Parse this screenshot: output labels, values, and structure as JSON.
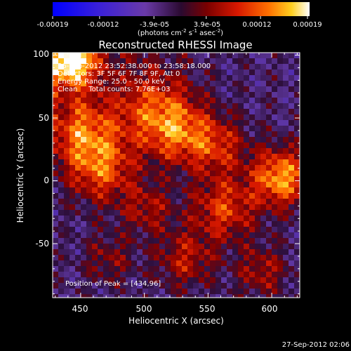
{
  "colorbar": {
    "tick_labels": [
      "-0.00019",
      "-0.00012",
      "-3.9e-05",
      "3.9e-05",
      "0.00012",
      "0.00019"
    ],
    "tick_values": [
      -0.00019,
      -0.00012,
      -3.9e-05,
      3.9e-05,
      0.00012,
      0.00019
    ],
    "range": [
      -0.00019,
      0.00019
    ],
    "unit_label": "(photons cm",
    "unit_exp1": "-2",
    "unit_mid": " s",
    "unit_exp2": "-1",
    "unit_mid2": " asec",
    "unit_exp3": "-2",
    "unit_close": ")"
  },
  "chart_data": {
    "type": "heatmap",
    "title": "Reconstructed RHESSI Image",
    "xlabel": "Heliocentric X (arcsec)",
    "ylabel": "Heliocentric Y (arcsec)",
    "xlim": [
      428,
      622
    ],
    "ylim": [
      -93,
      102
    ],
    "x_ticks": [
      450,
      500,
      550,
      600
    ],
    "y_ticks": [
      100,
      50,
      0,
      -50
    ],
    "x_tick_labels": [
      "450",
      "500",
      "550",
      "600"
    ],
    "y_tick_labels": [
      "100",
      "50",
      "0",
      "-50"
    ],
    "annotations": [
      "26-Sep-2012 23:52:38.000 to 23:58:18.000",
      "Detectors: 3F 5F 6F 7F 8F 9F, Att 0",
      "Energy Range: 25.0 - 50.0 keV",
      "Clean     Total counts: 7.76E+03"
    ],
    "peak_label": "Position of Peak = [434,96]",
    "peak": [
      434,
      96
    ]
  },
  "timestamp": "27-Sep-2012 02:06"
}
